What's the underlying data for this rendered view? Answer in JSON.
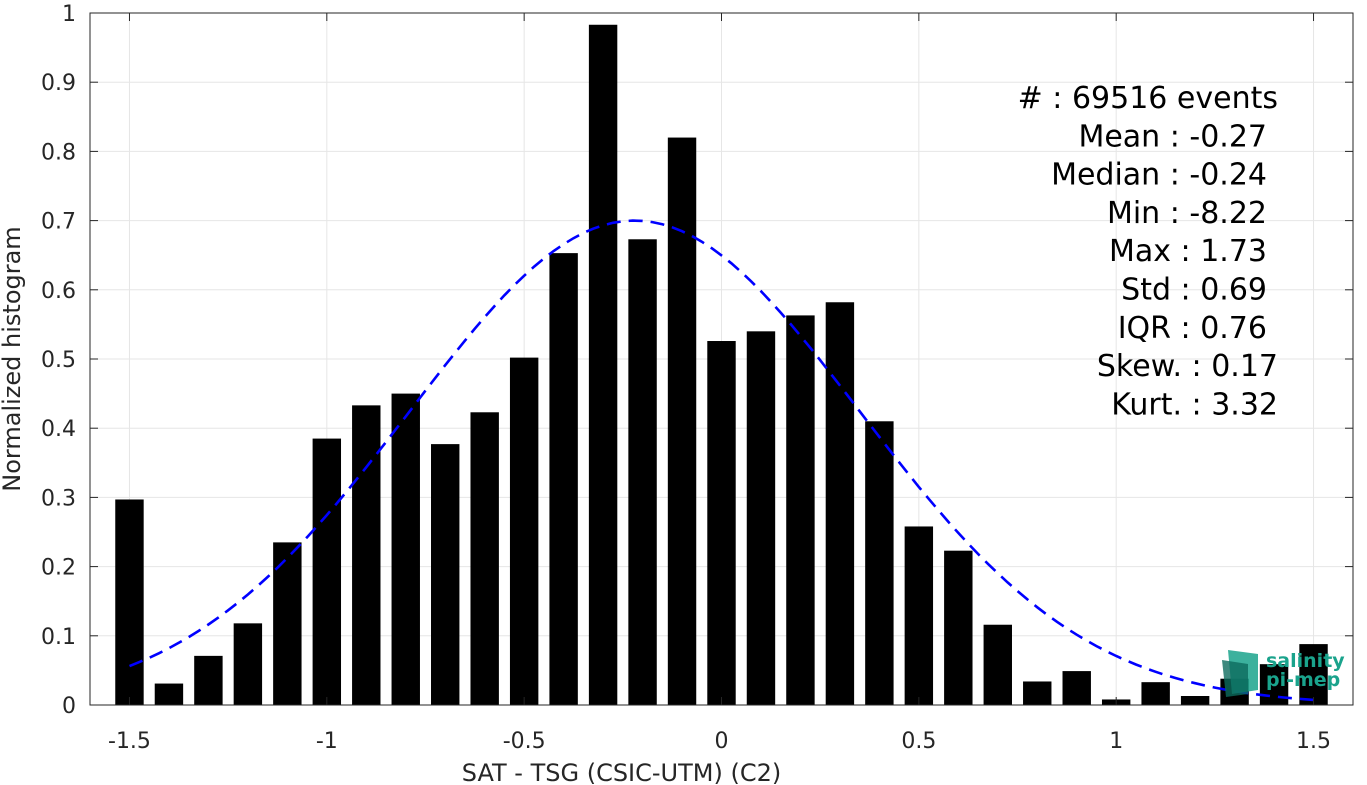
{
  "chart_data": {
    "type": "bar",
    "xlabel": "SAT - TSG (CSIC-UTM) (C2)",
    "ylabel": "Normalized histogram",
    "xlim": [
      -1.6,
      1.6
    ],
    "ylim": [
      0,
      1
    ],
    "grid": true,
    "bar_color": "#000000",
    "fit_color": "#0000ff",
    "x_ticks": [
      -1.5,
      -1,
      -0.5,
      0,
      0.5,
      1,
      1.5
    ],
    "x_tick_labels": [
      "-1.5",
      "-1",
      "-0.5",
      "0",
      "0.5",
      "1",
      "1.5"
    ],
    "y_ticks": [
      0,
      0.1,
      0.2,
      0.3,
      0.4,
      0.5,
      0.6,
      0.7,
      0.8,
      0.9,
      1
    ],
    "y_tick_labels": [
      "0",
      "0.1",
      "0.2",
      "0.3",
      "0.4",
      "0.5",
      "0.6",
      "0.7",
      "0.8",
      "0.9",
      "1"
    ],
    "x": [
      -1.5,
      -1.4,
      -1.3,
      -1.2,
      -1.1,
      -1.0,
      -0.9,
      -0.8,
      -0.7,
      -0.6,
      -0.5,
      -0.4,
      -0.3,
      -0.2,
      -0.1,
      0.0,
      0.1,
      0.2,
      0.3,
      0.4,
      0.5,
      0.6,
      0.7,
      0.8,
      0.9,
      1.0,
      1.1,
      1.2,
      1.3,
      1.4,
      1.5
    ],
    "values": [
      0.297,
      0.031,
      0.071,
      0.118,
      0.235,
      0.385,
      0.433,
      0.45,
      0.377,
      0.423,
      0.502,
      0.653,
      0.983,
      0.673,
      0.82,
      0.526,
      0.54,
      0.563,
      0.582,
      0.41,
      0.258,
      0.223,
      0.116,
      0.034,
      0.049,
      0.008,
      0.033,
      0.013,
      0.038,
      0.059,
      0.088
    ],
    "fit": {
      "type": "normal",
      "mean": -0.22,
      "std": 0.57,
      "peak": 0.7,
      "x_range": [
        -1.5,
        1.5
      ],
      "style": "dashed"
    },
    "annotations": [
      "#  : 69516 events",
      "Mean : -0.27",
      "Median : -0.24",
      "Min : -8.22",
      "Max : 1.73",
      "Std : 0.69",
      "IQR : 0.76",
      "Skew. : 0.17",
      "Kurt. : 3.32"
    ]
  },
  "logo": {
    "line1": "salinity",
    "line2": "pi-mep",
    "color": "#1aa38c"
  }
}
